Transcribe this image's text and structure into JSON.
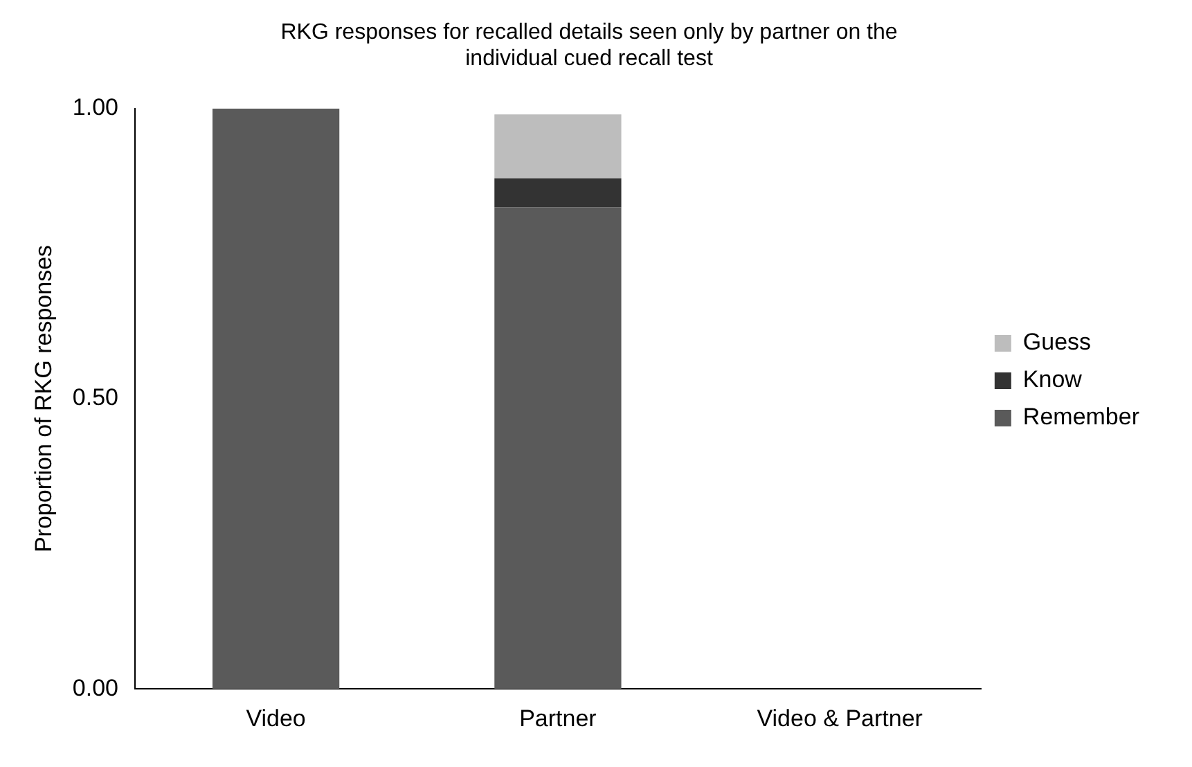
{
  "chart_data": {
    "type": "bar",
    "title": "RKG responses for recalled details seen only by partner on the individual cued recall test",
    "ylabel": "Proportion of RKG responses",
    "categories": [
      "Video",
      "Partner",
      "Video & Partner"
    ],
    "stacked": true,
    "series": [
      {
        "name": "Remember",
        "color": "#5a5a5a",
        "values": [
          1.0,
          0.83,
          null
        ]
      },
      {
        "name": "Know",
        "color": "#333333",
        "values": [
          0,
          0.05,
          null
        ]
      },
      {
        "name": "Guess",
        "color": "#bdbdbd",
        "values": [
          0,
          0.11,
          null
        ]
      }
    ],
    "ylim": [
      0,
      1
    ],
    "yticks": [
      {
        "value": 0,
        "label": "0.00"
      },
      {
        "value": 0.5,
        "label": "0.50"
      },
      {
        "value": 1,
        "label": "1.00"
      }
    ],
    "grid": false,
    "legend": "right"
  }
}
